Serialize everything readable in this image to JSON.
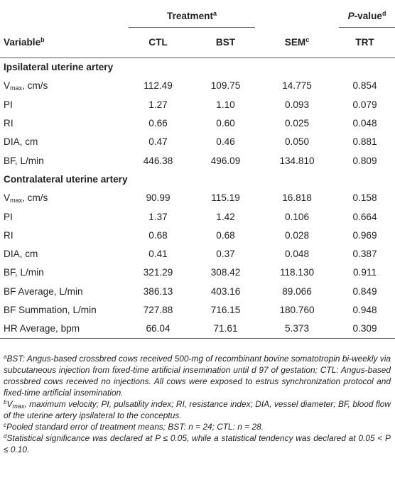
{
  "header": {
    "treatment": "Treatment",
    "treatment_sup": "a",
    "pvalue": "P",
    "pvalue_rest": "-value",
    "pvalue_sup": "d",
    "variable": "Variable",
    "variable_sup": "b",
    "ctl": "CTL",
    "bst": "BST",
    "sem": "SEM",
    "sem_sup": "c",
    "trt": "TRT"
  },
  "sections": [
    {
      "title": "Ipsilateral uterine artery",
      "rows": [
        {
          "label": "V",
          "label_sub": "max",
          "label_rest": ", cm/s",
          "ctl": "112.49",
          "bst": "109.75",
          "sem": "14.775",
          "trt": "0.854"
        },
        {
          "label": "PI",
          "ctl": "1.27",
          "bst": "1.10",
          "sem": "0.093",
          "trt": "0.079"
        },
        {
          "label": "RI",
          "ctl": "0.66",
          "bst": "0.60",
          "sem": "0.025",
          "trt": "0.048"
        },
        {
          "label": "DIA, cm",
          "ctl": "0.47",
          "bst": "0.46",
          "sem": "0.050",
          "trt": "0.881"
        },
        {
          "label": "BF, L/min",
          "ctl": "446.38",
          "bst": "496.09",
          "sem": "134.810",
          "trt": "0.809"
        }
      ]
    },
    {
      "title": "Contralateral uterine artery",
      "rows": [
        {
          "label": "V",
          "label_sub": "max",
          "label_rest": ", cm/s",
          "ctl": "90.99",
          "bst": "115.19",
          "sem": "16.818",
          "trt": "0.158"
        },
        {
          "label": "PI",
          "ctl": "1.37",
          "bst": "1.42",
          "sem": "0.106",
          "trt": "0.664"
        },
        {
          "label": "RI",
          "ctl": "0.68",
          "bst": "0.68",
          "sem": "0.028",
          "trt": "0.969"
        },
        {
          "label": "DIA, cm",
          "ctl": "0.41",
          "bst": "0.37",
          "sem": "0.048",
          "trt": "0.387"
        },
        {
          "label": "BF, L/min",
          "ctl": "321.29",
          "bst": "308.42",
          "sem": "118.130",
          "trt": "0.911"
        },
        {
          "label": "BF Average, L/min",
          "ctl": "386.13",
          "bst": "403.16",
          "sem": "89.066",
          "trt": "0.849"
        },
        {
          "label": "BF Summation, L/min",
          "ctl": "727.88",
          "bst": "716.15",
          "sem": "180.760",
          "trt": "0.948"
        },
        {
          "label": "HR Average, bpm",
          "ctl": "66.04",
          "bst": "71.61",
          "sem": "5.373",
          "trt": "0.309"
        }
      ]
    }
  ],
  "footnotes": [
    {
      "mark": "a",
      "text": "BST: Angus-based crossbred cows received 500-mg of recombinant bovine somatotropin bi-weekly via subcutaneous injection from fixed-time artificial insemination until d 97 of gestation; CTL: Angus-based crossbred cows received no injections. All cows were exposed to estrus synchronization protocol and fixed-time artificial insemination."
    },
    {
      "mark": "b",
      "text_start": "V",
      "text_sub": "max",
      "text": ", maximum velocity; PI, pulsatility index; RI, resistance index; DIA, vessel diameter; BF, blood flow of the uterine artery ipsilateral to the conceptus."
    },
    {
      "mark": "c",
      "text": "Pooled standard error of treatment means; BST: n = 24; CTL: n = 28."
    },
    {
      "mark": "d",
      "text": "Statistical significance was declared at P ≤ 0.05, while a statistical tendency was declared at 0.05 < P ≤ 0.10."
    }
  ]
}
